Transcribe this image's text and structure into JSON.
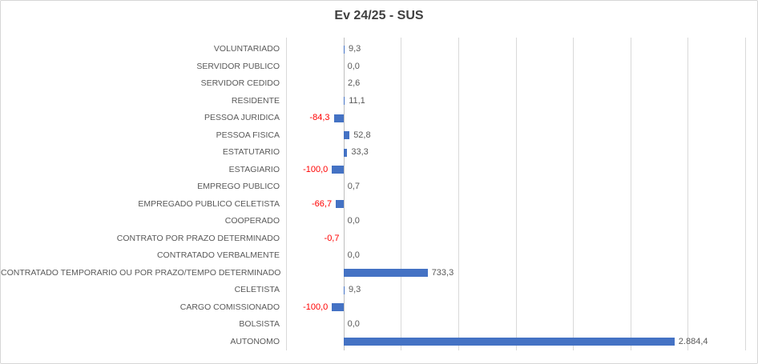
{
  "chart": {
    "title": "Ev 24/25 - SUS"
  },
  "colors": {
    "bar": "#4472c4",
    "negative_label": "#ff0000",
    "text": "#595959",
    "title": "#404040",
    "gridline": "#d9d9d9",
    "zero_axis": "#bfbfbf",
    "border": "#d6d6d6"
  },
  "chart_data": {
    "type": "bar",
    "orientation": "horizontal",
    "title": "Ev 24/25 - SUS",
    "xlabel": "",
    "ylabel": "",
    "xlim": [
      -500,
      3500
    ],
    "grid_step": 500,
    "grid": true,
    "legend": false,
    "value_labels": true,
    "categories": [
      "VOLUNTARIADO",
      "SERVIDOR PUBLICO",
      "SERVIDOR CEDIDO",
      "RESIDENTE",
      "PESSOA JURIDICA",
      "PESSOA FISICA",
      "ESTATUTARIO",
      "ESTAGIARIO",
      "EMPREGO PUBLICO",
      "EMPREGADO PUBLICO CELETISTA",
      "COOPERADO",
      "CONTRATO POR PRAZO DETERMINADO",
      "CONTRATADO VERBALMENTE",
      "CONTRATADO TEMPORARIO OU POR PRAZO/TEMPO DETERMINADO",
      "CELETISTA",
      "CARGO COMISSIONADO",
      "BOLSISTA",
      "AUTONOMO"
    ],
    "values": [
      9.3,
      0.0,
      2.6,
      11.1,
      -84.3,
      52.8,
      33.3,
      -100.0,
      0.7,
      -66.7,
      0.0,
      -0.7,
      0.0,
      733.3,
      9.3,
      -100.0,
      0.0,
      2884.4
    ],
    "value_labels_text": [
      "9,3",
      "0,0",
      "2,6",
      "11,1",
      "-84,3",
      "52,8",
      "33,3",
      "-100,0",
      "0,7",
      "-66,7",
      "0,0",
      "-0,7",
      "0,0",
      "733,3",
      "9,3",
      "-100,0",
      "0,0",
      "2.884,4"
    ]
  }
}
